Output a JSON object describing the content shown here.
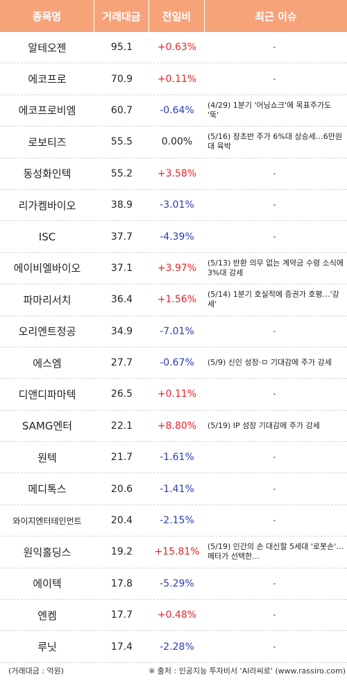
{
  "header": {
    "col_name": "종목명",
    "col_volume": "거래대금",
    "col_change": "전일비",
    "col_issue": "최근 이슈"
  },
  "rows": [
    {
      "name": "알테오젠",
      "volume": "95.1",
      "change": "+0.63%",
      "dir": "up",
      "issue": "-"
    },
    {
      "name": "에코프로",
      "volume": "70.9",
      "change": "+0.11%",
      "dir": "up",
      "issue": "-"
    },
    {
      "name": "에코프로비엠",
      "volume": "60.7",
      "change": "-0.64%",
      "dir": "down",
      "issue": "(4/29) 1분기 '어닝쇼크'에 목표주가도 '뚝'"
    },
    {
      "name": "로보티즈",
      "volume": "55.5",
      "change": "0.00%",
      "dir": "flat",
      "issue": "(5/16) 장초반 주가 6%대 상승세…6만원대 육박"
    },
    {
      "name": "동성화인텍",
      "volume": "55.2",
      "change": "+3.58%",
      "dir": "up",
      "issue": "-"
    },
    {
      "name": "리가켐바이오",
      "volume": "38.9",
      "change": "-3.01%",
      "dir": "down",
      "issue": "-"
    },
    {
      "name": "ISC",
      "volume": "37.7",
      "change": "-4.39%",
      "dir": "down",
      "issue": "-"
    },
    {
      "name": "에이비엘바이오",
      "volume": "37.1",
      "change": "+3.97%",
      "dir": "up",
      "issue": "(5/13) 반환 의무 없는 계약금 수령 소식에 3%대 강세"
    },
    {
      "name": "파마리서치",
      "volume": "36.4",
      "change": "+1.56%",
      "dir": "up",
      "issue": "(5/14) 1분기 호실적에 증권가 호평…'강세'"
    },
    {
      "name": "오리엔트정공",
      "volume": "34.9",
      "change": "-7.01%",
      "dir": "down",
      "issue": "-"
    },
    {
      "name": "에스엠",
      "volume": "27.7",
      "change": "-0.67%",
      "dir": "down",
      "issue": "(5/9) 신인 성장·ㅁ 기대감에 주가 강세"
    },
    {
      "name": "디앤디파마텍",
      "volume": "26.5",
      "change": "+0.11%",
      "dir": "up",
      "issue": "-"
    },
    {
      "name": "SAMG엔터",
      "volume": "22.1",
      "change": "+8.80%",
      "dir": "up",
      "issue": "(5/19) IP 성장 기대감에 주가 강세"
    },
    {
      "name": "원텍",
      "volume": "21.7",
      "change": "-1.61%",
      "dir": "down",
      "issue": "-"
    },
    {
      "name": "메디톡스",
      "volume": "20.6",
      "change": "-1.41%",
      "dir": "down",
      "issue": "-"
    },
    {
      "name": "와이지엔터테인먼트",
      "volume": "20.4",
      "change": "-2.15%",
      "dir": "down",
      "issue": "-"
    },
    {
      "name": "원익홀딩스",
      "volume": "19.2",
      "change": "+15.81%",
      "dir": "up",
      "issue": "(5/19) 인간의 손 대신할 5세대 '로봇손'…메타가 선택한…"
    },
    {
      "name": "에이텍",
      "volume": "17.8",
      "change": "-5.29%",
      "dir": "down",
      "issue": "-"
    },
    {
      "name": "엔켐",
      "volume": "17.7",
      "change": "+0.48%",
      "dir": "up",
      "issue": "-"
    },
    {
      "name": "루닛",
      "volume": "17.4",
      "change": "-2.28%",
      "dir": "down",
      "issue": "-"
    }
  ],
  "footer": {
    "unit": "(거래대금 : 억원)",
    "source": "※ 출처 : 인공지능 투자비서 'AI라씨로' (www.rassiro.com)"
  },
  "colors": {
    "header_bg": "#f7a37a",
    "up": "#e8232a",
    "down": "#2b3bb4"
  }
}
